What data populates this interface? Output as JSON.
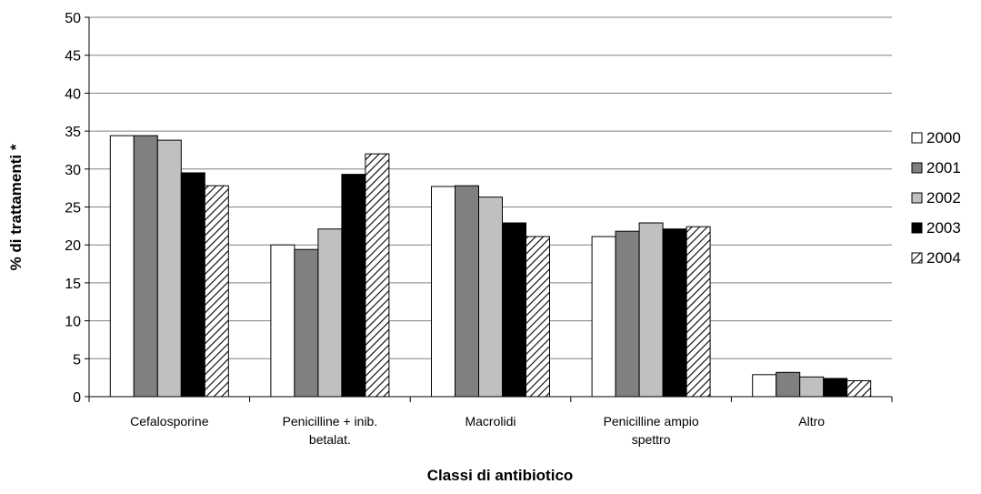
{
  "chart_data": {
    "type": "bar",
    "title": "",
    "xlabel": "Classi di antibiotico",
    "ylabel": "% di trattamenti *",
    "ylim": [
      0,
      50
    ],
    "yticks": [
      0,
      5,
      10,
      15,
      20,
      25,
      30,
      35,
      40,
      45,
      50
    ],
    "grid": "horizontal",
    "legend_position": "right",
    "categories": [
      [
        "Cefalosporine"
      ],
      [
        "Penicilline + inib.",
        "betalat."
      ],
      [
        "Macrolidi"
      ],
      [
        "Penicilline ampio",
        "spettro"
      ],
      [
        "Altro"
      ]
    ],
    "series": [
      {
        "name": "2000",
        "fill": "#ffffff",
        "values": [
          34.4,
          20.0,
          27.7,
          21.1,
          2.9
        ]
      },
      {
        "name": "2001",
        "fill": "#808080",
        "values": [
          34.4,
          19.4,
          27.8,
          21.8,
          3.2
        ]
      },
      {
        "name": "2002",
        "fill": "#c0c0c0",
        "values": [
          33.8,
          22.1,
          26.3,
          22.9,
          2.6
        ]
      },
      {
        "name": "2003",
        "fill": "#000000",
        "values": [
          29.5,
          29.3,
          22.9,
          22.1,
          2.4
        ]
      },
      {
        "name": "2004",
        "fill": "hatch",
        "values": [
          27.8,
          32.0,
          21.1,
          22.4,
          2.1
        ]
      }
    ],
    "colors": {
      "axis": "#000000",
      "grid": "#808080",
      "hatch_line": "#000000",
      "hatch_bg": "#ffffff"
    }
  }
}
